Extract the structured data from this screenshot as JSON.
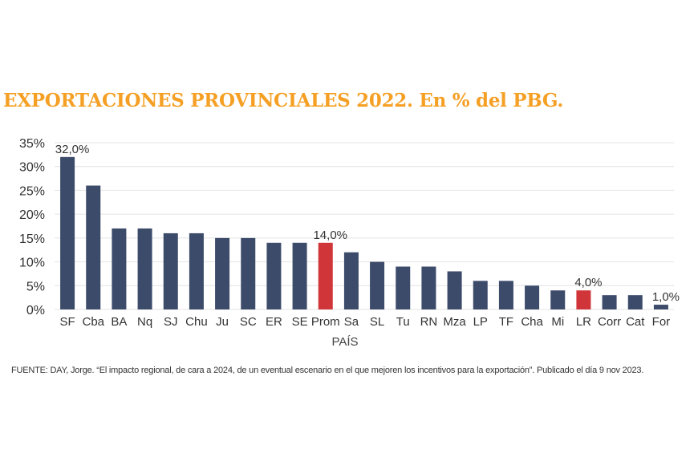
{
  "title": "EXPORTACIONES PROVINCIALES 2022. En % del PBG.",
  "source": "FUENTE: DAY, Jorge. “El impacto regional, de cara a 2024, de un eventual escenario en el que mejoren los incentivos para la exportación”. Publicado el día 9 nov 2023.",
  "colors": {
    "bar": "#3d4b6b",
    "highlight": "#d0353a",
    "title": "#f5a025",
    "grid": "#e4e4e4"
  },
  "chart_data": {
    "type": "bar",
    "categories": [
      "SF",
      "Cba",
      "BA",
      "Nq",
      "SJ",
      "Chu",
      "Ju",
      "SC",
      "ER",
      "SE",
      "Prom",
      "Sa",
      "SL",
      "Tu",
      "RN",
      "Mza",
      "LP",
      "TF",
      "Cha",
      "Mi",
      "LR",
      "Corr",
      "Cat",
      "For"
    ],
    "values": [
      32,
      26,
      17,
      17,
      16,
      16,
      15,
      15,
      14,
      14,
      14,
      12,
      10,
      9,
      9,
      8,
      6,
      6,
      5,
      4,
      4,
      3,
      3,
      1
    ],
    "highlight": [
      "Prom",
      "LR"
    ],
    "data_labels": [
      {
        "category": "SF",
        "text": "32,0%"
      },
      {
        "category": "Prom",
        "text": "14,0%"
      },
      {
        "category": "LR",
        "text": "4,0%"
      },
      {
        "category": "For",
        "text": "1,0%"
      }
    ],
    "xlabel": "PAÍS",
    "ylabel": "",
    "ylim": [
      0,
      35
    ],
    "yticks": [
      0,
      5,
      10,
      15,
      20,
      25,
      30,
      35
    ],
    "ytick_labels": [
      "0%",
      "5%",
      "10%",
      "15%",
      "20%",
      "25%",
      "30%",
      "35%"
    ],
    "grid": true
  }
}
